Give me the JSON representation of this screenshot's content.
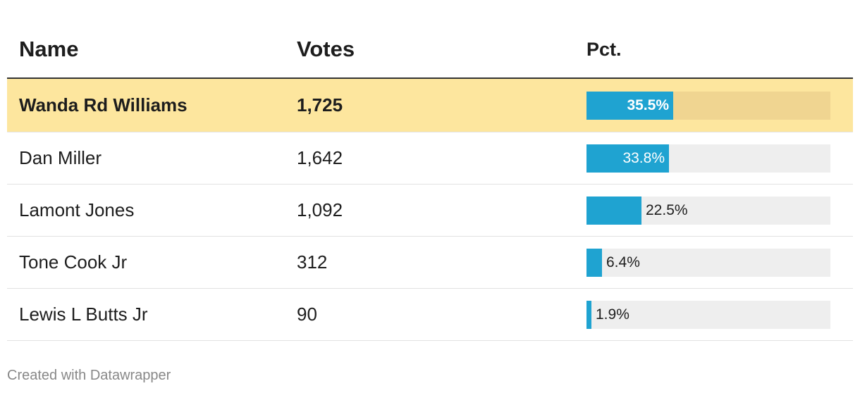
{
  "chart_data": {
    "type": "table",
    "columns": [
      "Name",
      "Votes",
      "Pct."
    ],
    "rows": [
      {
        "name": "Wanda Rd Williams",
        "votes": "1,725",
        "pct": 35.5,
        "pct_label": "35.5%",
        "highlight": true
      },
      {
        "name": "Dan Miller",
        "votes": "1,642",
        "pct": 33.8,
        "pct_label": "33.8%",
        "highlight": false
      },
      {
        "name": "Lamont Jones",
        "votes": "1,092",
        "pct": 22.5,
        "pct_label": "22.5%",
        "highlight": false
      },
      {
        "name": "Tone Cook Jr",
        "votes": "312",
        "pct": 6.4,
        "pct_label": "6.4%",
        "highlight": false
      },
      {
        "name": "Lewis L Butts Jr",
        "votes": "90",
        "pct": 1.9,
        "pct_label": "1.9%",
        "highlight": false
      }
    ],
    "bar_max": 100,
    "colors": {
      "bar": "#1fa3d1",
      "highlight_row": "#fde69e",
      "track": "#eeeeee"
    }
  },
  "footer": {
    "credit": "Created with Datawrapper"
  }
}
